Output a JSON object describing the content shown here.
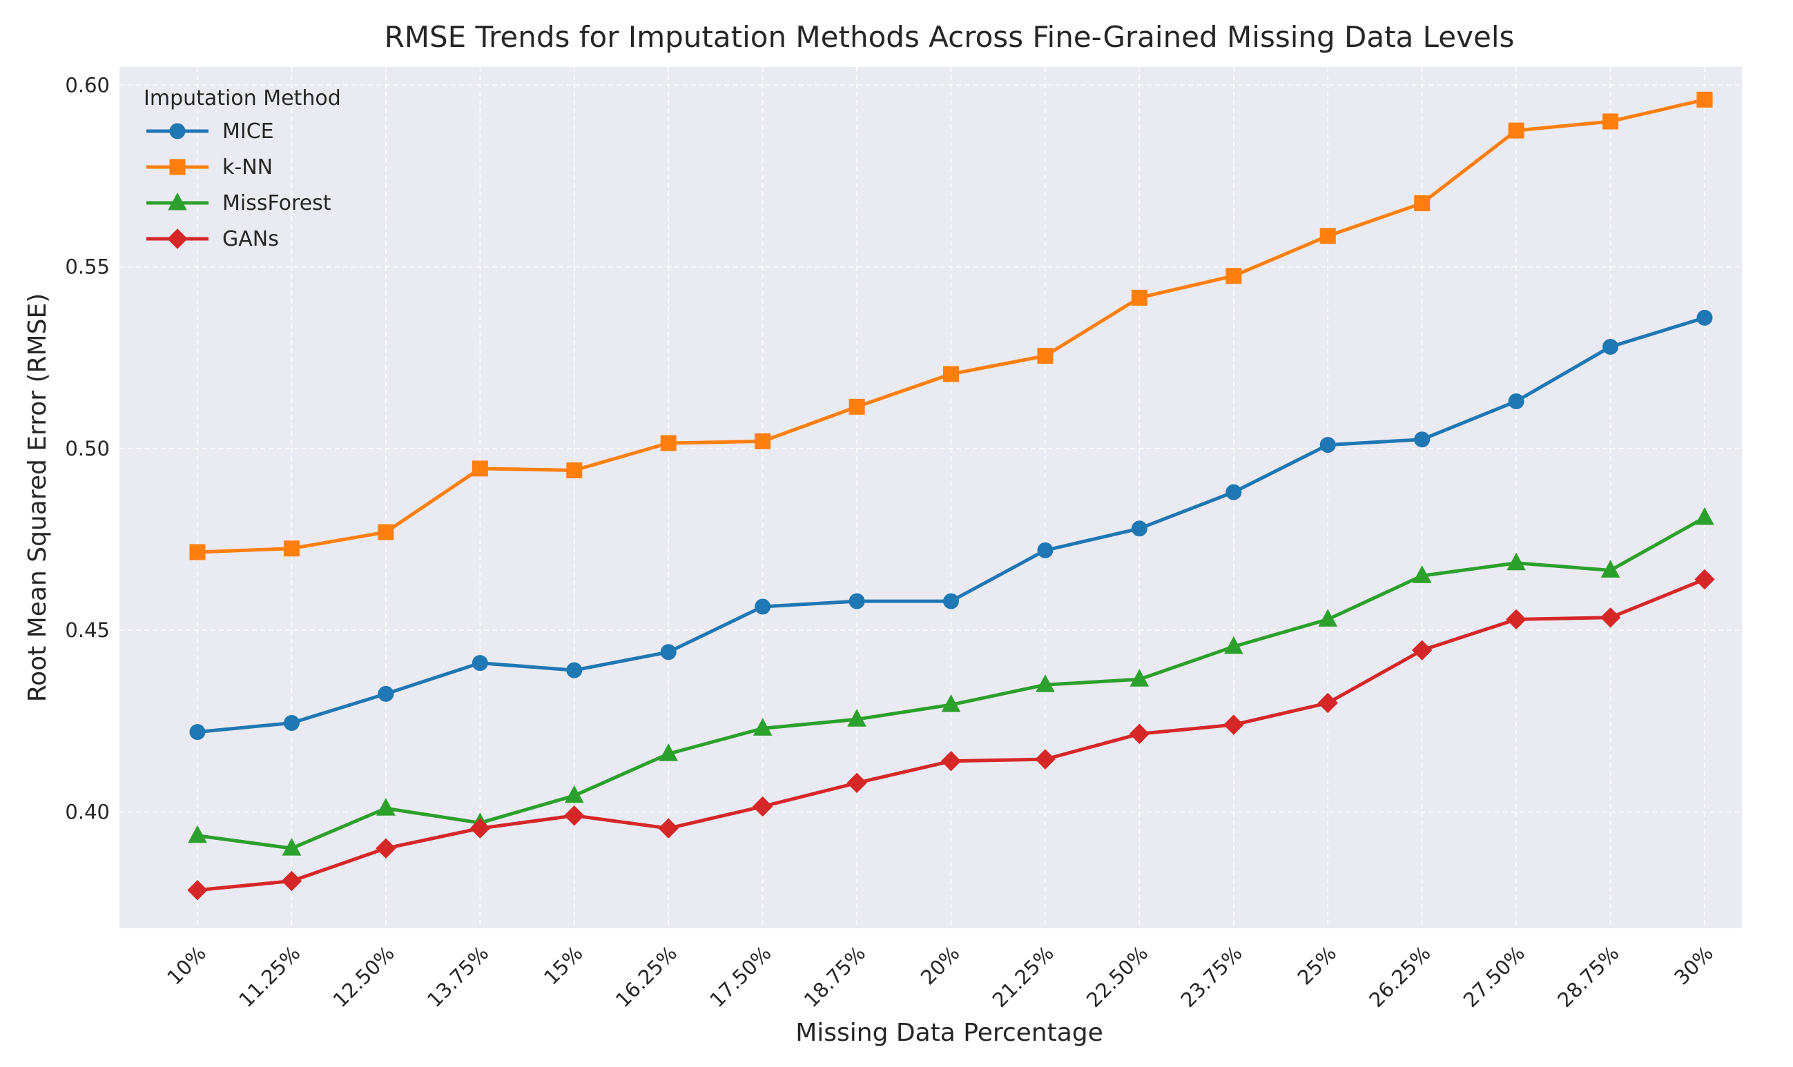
{
  "chart_data": {
    "type": "line",
    "title": "RMSE Trends for Imputation Methods Across Fine-Grained Missing Data Levels",
    "xlabel": "Missing Data Percentage",
    "ylabel": "Root Mean Squared Error (RMSE)",
    "categories": [
      "10%",
      "11.25%",
      "12.50%",
      "13.75%",
      "15%",
      "16.25%",
      "17.50%",
      "18.75%",
      "20%",
      "21.25%",
      "22.50%",
      "23.75%",
      "25%",
      "26.25%",
      "27.50%",
      "28.75%",
      "30%"
    ],
    "ylim": [
      0.368,
      0.605
    ],
    "yticks": [
      0.4,
      0.45,
      0.5,
      0.55,
      0.6
    ],
    "ytick_labels": [
      "0.40",
      "0.45",
      "0.50",
      "0.55",
      "0.60"
    ],
    "grid": true,
    "legend": {
      "title": "Imputation Method",
      "position": "top-left"
    },
    "background": "#eaeaf2",
    "series": [
      {
        "name": "MICE",
        "color": "#1f77b4",
        "marker": "circle",
        "values": [
          0.422,
          0.4245,
          0.4325,
          0.441,
          0.439,
          0.444,
          0.4565,
          0.458,
          0.458,
          0.472,
          0.478,
          0.488,
          0.501,
          0.5025,
          0.513,
          0.528,
          0.536
        ]
      },
      {
        "name": "k-NN",
        "color": "#ff7f0e",
        "marker": "square",
        "values": [
          0.4715,
          0.4725,
          0.477,
          0.4945,
          0.494,
          0.5015,
          0.502,
          0.5115,
          0.5205,
          0.5255,
          0.5415,
          0.5475,
          0.5585,
          0.5675,
          0.5875,
          0.59,
          0.596
        ]
      },
      {
        "name": "MissForest",
        "color": "#2ca02c",
        "marker": "triangle",
        "values": [
          0.3935,
          0.39,
          0.401,
          0.397,
          0.4045,
          0.416,
          0.423,
          0.4255,
          0.4295,
          0.435,
          0.4365,
          0.4455,
          0.453,
          0.465,
          0.4685,
          0.4665,
          0.481
        ]
      },
      {
        "name": "GANs",
        "color": "#d62728",
        "marker": "diamond",
        "values": [
          0.3785,
          0.381,
          0.39,
          0.3955,
          0.399,
          0.3955,
          0.4015,
          0.408,
          0.414,
          0.4145,
          0.4215,
          0.424,
          0.43,
          0.4445,
          0.453,
          0.4535,
          0.464
        ]
      }
    ]
  }
}
